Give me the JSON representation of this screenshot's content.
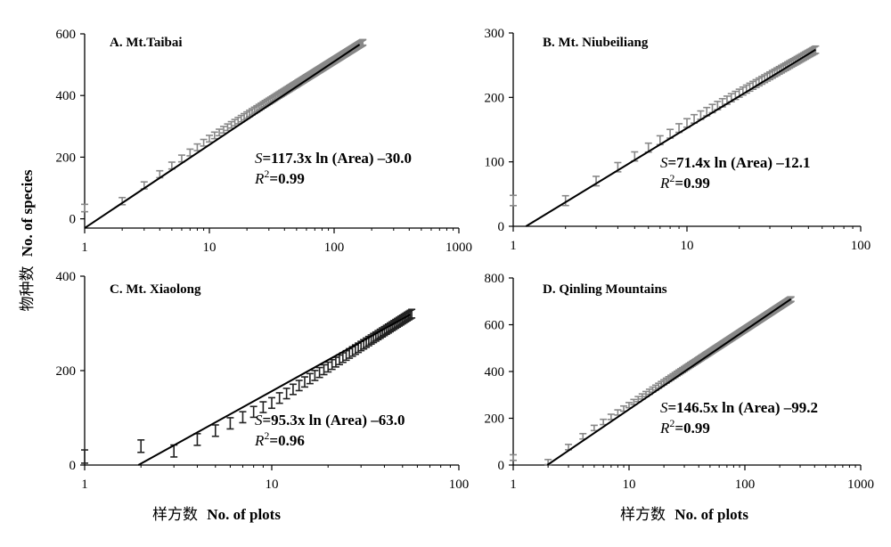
{
  "labels": {
    "ylabel_cn": "物种数",
    "ylabel_en": "No. of species",
    "xlabel_cn": "样方数",
    "xlabel_en": "No. of plots"
  },
  "chart_data": [
    {
      "type": "scatter",
      "title": "A. Mt.Taibai",
      "equation": {
        "prefix": "S",
        "body": "=117.3x ln (Area) –30.0"
      },
      "r2": {
        "prefix": "R",
        "sup": "2",
        "body": "=0.99"
      },
      "xscale": "log",
      "xlim": [
        1,
        1000
      ],
      "ylim": [
        -30,
        600
      ],
      "xticks": [
        1,
        10,
        100,
        1000
      ],
      "xtick_labels": [
        "1",
        "10",
        "100",
        "1000"
      ],
      "yticks": [
        0,
        200,
        400,
        600
      ],
      "ytick_labels": [
        "0",
        "200",
        "400",
        "600"
      ],
      "fit": {
        "a": 117.3,
        "b": -30.0,
        "x_end": 160
      },
      "n_max": 170,
      "points": {
        "a": 117.3,
        "b": -30.0,
        "dev_max": 20,
        "dev_at": 10,
        "err": 12,
        "err_scale": 0.25
      },
      "marker_color": "#888888"
    },
    {
      "type": "scatter",
      "title": "B. Mt. Niubeiliang",
      "equation": {
        "prefix": "S",
        "body": "=71.4x ln (Area) –12.1"
      },
      "r2": {
        "prefix": "R",
        "sup": "2",
        "body": "=0.99"
      },
      "xscale": "log",
      "xlim": [
        1,
        100
      ],
      "ylim": [
        0,
        300
      ],
      "xticks": [
        1,
        10,
        100
      ],
      "xtick_labels": [
        "1",
        "10",
        "100"
      ],
      "yticks": [
        0,
        100,
        200,
        300
      ],
      "ytick_labels": [
        "0",
        "100",
        "200",
        "300"
      ],
      "fit": {
        "a": 71.4,
        "b": -12.1,
        "x_end": 55
      },
      "n_max": 55,
      "points": {
        "a": 71.4,
        "b": -12.1,
        "dev_max": 8,
        "dev_at": 10,
        "err": 8,
        "err_scale": 0.3
      },
      "marker_color": "#888888"
    },
    {
      "type": "scatter",
      "title": "C. Mt. Xiaolong",
      "equation": {
        "prefix": "S",
        "body": "=95.3x ln (Area) –63.0"
      },
      "r2": {
        "prefix": "R",
        "sup": "2",
        "body": "=0.96"
      },
      "xscale": "log",
      "xlim": [
        1,
        100
      ],
      "ylim": [
        0,
        400
      ],
      "xticks": [
        1,
        10,
        100
      ],
      "xtick_labels": [
        "1",
        "10",
        "100"
      ],
      "yticks": [
        0,
        200,
        400
      ],
      "ytick_labels": [
        "0",
        "200",
        "400"
      ],
      "fit": {
        "a": 95.3,
        "b": -63.0,
        "x_end": 55
      },
      "n_max": 56,
      "points": {
        "a": 95.3,
        "b": -63.0,
        "dev_max": -25,
        "dev_at": 10,
        "err": 14,
        "err_scale": 0.35
      },
      "marker_color": "#222222"
    },
    {
      "type": "scatter",
      "title": "D. Qinling Mountains",
      "equation": {
        "prefix": "S",
        "body": "=146.5x ln (Area) –99.2"
      },
      "r2": {
        "prefix": "R",
        "sup": "2",
        "body": "=0.99"
      },
      "xscale": "log",
      "xlim": [
        1,
        1000
      ],
      "ylim": [
        0,
        800
      ],
      "xticks": [
        1,
        10,
        100,
        1000
      ],
      "xtick_labels": [
        "1",
        "10",
        "100",
        "1000"
      ],
      "yticks": [
        0,
        200,
        400,
        600,
        800
      ],
      "ytick_labels": [
        "0",
        "200",
        "400",
        "600",
        "800"
      ],
      "fit": {
        "a": 146.5,
        "b": -99.2,
        "x_end": 250
      },
      "n_max": 250,
      "points": {
        "a": 146.5,
        "b": -99.2,
        "dev_max": 22,
        "dev_at": 5,
        "err": 12,
        "err_scale": 0.2
      },
      "marker_color": "#888888"
    }
  ]
}
